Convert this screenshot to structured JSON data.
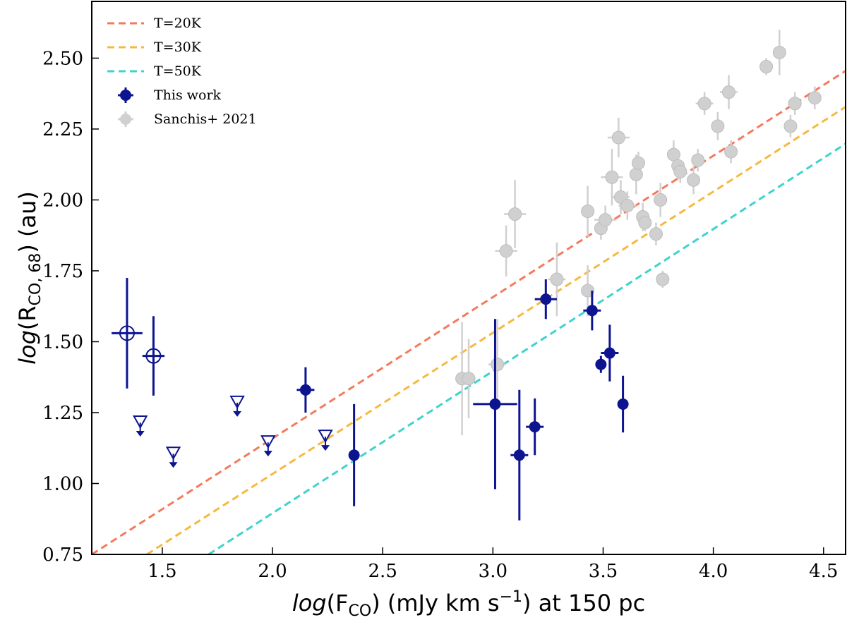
{
  "chart_data": {
    "type": "scatter",
    "xlabel": {
      "prefix": "log",
      "main": "(F",
      "sub": "CO",
      "rest": ") (mJy km s",
      "sup": "−1",
      "tail": ") at 150 pc"
    },
    "ylabel": {
      "prefix": "log",
      "main": "(R",
      "sub": "CO, 68",
      "tail": ") (au)"
    },
    "xlim": [
      1.18,
      4.6
    ],
    "ylim": [
      0.75,
      2.7
    ],
    "xticks": [
      1.5,
      2.0,
      2.5,
      3.0,
      3.5,
      4.0,
      4.5
    ],
    "xtick_labels": [
      "1.5",
      "2.0",
      "2.5",
      "3.0",
      "3.5",
      "4.0",
      "4.5"
    ],
    "yticks": [
      0.75,
      1.0,
      1.25,
      1.5,
      1.75,
      2.0,
      2.25,
      2.5
    ],
    "ytick_labels": [
      "0.75",
      "1.00",
      "1.25",
      "1.50",
      "1.75",
      "2.00",
      "2.25",
      "2.50"
    ],
    "grid": false,
    "legend_position": "top-left",
    "lines": [
      {
        "name": "T=20K",
        "color": "#f47a5e",
        "x": [
          1.18,
          4.6
        ],
        "y": [
          0.75,
          2.455
        ]
      },
      {
        "name": "T=30K",
        "color": "#f7b83f",
        "x": [
          1.43,
          4.6
        ],
        "y": [
          0.75,
          2.328
        ]
      },
      {
        "name": "T=50K",
        "color": "#3fd3cc",
        "x": [
          1.71,
          4.6
        ],
        "y": [
          0.75,
          2.198
        ]
      }
    ],
    "series": [
      {
        "name": "This work",
        "color": "#0d1490",
        "points": [
          {
            "x": 2.15,
            "y": 1.33,
            "xerr": 0.04,
            "yerr": 0.08
          },
          {
            "x": 2.37,
            "y": 1.1,
            "xerr": 0.0,
            "yerr": 0.18
          },
          {
            "x": 3.01,
            "y": 1.28,
            "xerr": 0.1,
            "yerr": 0.3
          },
          {
            "x": 3.12,
            "y": 1.1,
            "xerr": 0.04,
            "yerr": 0.23
          },
          {
            "x": 3.19,
            "y": 1.2,
            "xerr": 0.04,
            "yerr": 0.1
          },
          {
            "x": 3.24,
            "y": 1.65,
            "xerr": 0.05,
            "yerr": 0.07
          },
          {
            "x": 3.45,
            "y": 1.61,
            "xerr": 0.04,
            "yerr": 0.07
          },
          {
            "x": 3.49,
            "y": 1.42,
            "xerr": 0.01,
            "yerr": 0.03
          },
          {
            "x": 3.53,
            "y": 1.46,
            "xerr": 0.04,
            "yerr": 0.1
          },
          {
            "x": 3.59,
            "y": 1.28,
            "xerr": 0.02,
            "yerr": 0.1
          }
        ]
      },
      {
        "name": "open-circles",
        "color": "#0d1490",
        "points": [
          {
            "x": 1.34,
            "y": 1.53,
            "xerr": 0.07,
            "yerr": 0.195
          },
          {
            "x": 1.46,
            "y": 1.45,
            "xerr": 0.05,
            "yerr": 0.14
          }
        ]
      },
      {
        "name": "upper-limits",
        "color": "#0d1490",
        "points": [
          {
            "x": 1.4,
            "y": 1.22
          },
          {
            "x": 1.55,
            "y": 1.11
          },
          {
            "x": 1.84,
            "y": 1.29
          },
          {
            "x": 1.98,
            "y": 1.15
          },
          {
            "x": 2.24,
            "y": 1.17
          }
        ]
      },
      {
        "name": "Sanchis+ 2021",
        "color": "#d0d0d0",
        "points": [
          {
            "x": 2.86,
            "y": 1.37,
            "xerr": 0.03,
            "yerr": 0.2
          },
          {
            "x": 2.89,
            "y": 1.37,
            "xerr": 0.0,
            "yerr": 0.14
          },
          {
            "x": 3.02,
            "y": 1.42,
            "xerr": 0.04,
            "yerr": 0.16
          },
          {
            "x": 3.06,
            "y": 1.82,
            "xerr": 0.05,
            "yerr": 0.09
          },
          {
            "x": 3.1,
            "y": 1.95,
            "xerr": 0.05,
            "yerr": 0.12
          },
          {
            "x": 3.29,
            "y": 1.72,
            "xerr": 0.04,
            "yerr": 0.13
          },
          {
            "x": 3.43,
            "y": 1.96,
            "xerr": 0.0,
            "yerr": 0.09
          },
          {
            "x": 3.43,
            "y": 1.68,
            "xerr": 0.03,
            "yerr": 0.09
          },
          {
            "x": 3.49,
            "y": 1.9,
            "xerr": 0.02,
            "yerr": 0.04
          },
          {
            "x": 3.51,
            "y": 1.93,
            "xerr": 0.05,
            "yerr": 0.05
          },
          {
            "x": 3.54,
            "y": 2.08,
            "xerr": 0.05,
            "yerr": 0.1
          },
          {
            "x": 3.57,
            "y": 2.22,
            "xerr": 0.05,
            "yerr": 0.07
          },
          {
            "x": 3.58,
            "y": 2.01,
            "xerr": 0.04,
            "yerr": 0.06
          },
          {
            "x": 3.61,
            "y": 1.98,
            "xerr": 0.04,
            "yerr": 0.05
          },
          {
            "x": 3.65,
            "y": 2.09,
            "xerr": 0.0,
            "yerr": 0.07
          },
          {
            "x": 3.66,
            "y": 2.13,
            "xerr": 0.03,
            "yerr": 0.04
          },
          {
            "x": 3.68,
            "y": 1.94,
            "xerr": 0.03,
            "yerr": 0.05
          },
          {
            "x": 3.69,
            "y": 1.92,
            "xerr": 0.0,
            "yerr": 0.03
          },
          {
            "x": 3.74,
            "y": 1.88,
            "xerr": 0.0,
            "yerr": 0.04
          },
          {
            "x": 3.76,
            "y": 2.0,
            "xerr": 0.03,
            "yerr": 0.06
          },
          {
            "x": 3.77,
            "y": 1.72,
            "xerr": 0.0,
            "yerr": 0.03
          },
          {
            "x": 3.82,
            "y": 2.16,
            "xerr": 0.03,
            "yerr": 0.05
          },
          {
            "x": 3.84,
            "y": 2.12,
            "xerr": 0.03,
            "yerr": 0.05
          },
          {
            "x": 3.85,
            "y": 2.1,
            "xerr": 0.03,
            "yerr": 0.04
          },
          {
            "x": 3.91,
            "y": 2.07,
            "xerr": 0.0,
            "yerr": 0.05
          },
          {
            "x": 3.93,
            "y": 2.14,
            "xerr": 0.03,
            "yerr": 0.04
          },
          {
            "x": 3.96,
            "y": 2.34,
            "xerr": 0.04,
            "yerr": 0.04
          },
          {
            "x": 4.02,
            "y": 2.26,
            "xerr": 0.02,
            "yerr": 0.05
          },
          {
            "x": 4.07,
            "y": 2.38,
            "xerr": 0.04,
            "yerr": 0.06
          },
          {
            "x": 4.08,
            "y": 2.17,
            "xerr": 0.02,
            "yerr": 0.04
          },
          {
            "x": 4.24,
            "y": 2.47,
            "xerr": 0.02,
            "yerr": 0.03
          },
          {
            "x": 4.3,
            "y": 2.52,
            "xerr": 0.03,
            "yerr": 0.08
          },
          {
            "x": 4.35,
            "y": 2.26,
            "xerr": 0.02,
            "yerr": 0.04
          },
          {
            "x": 4.37,
            "y": 2.34,
            "xerr": 0.03,
            "yerr": 0.04
          },
          {
            "x": 4.46,
            "y": 2.36,
            "xerr": 0.02,
            "yerr": 0.04
          }
        ]
      }
    ],
    "legend": [
      {
        "label": "T=20K",
        "kind": "line",
        "color": "#f47a5e"
      },
      {
        "label": "T=30K",
        "kind": "line",
        "color": "#f7b83f"
      },
      {
        "label": "T=50K",
        "kind": "line",
        "color": "#3fd3cc"
      },
      {
        "label": "This work",
        "kind": "marker",
        "color": "#0d1490"
      },
      {
        "label": "Sanchis+ 2021",
        "kind": "marker",
        "color": "#d0d0d0"
      }
    ]
  }
}
